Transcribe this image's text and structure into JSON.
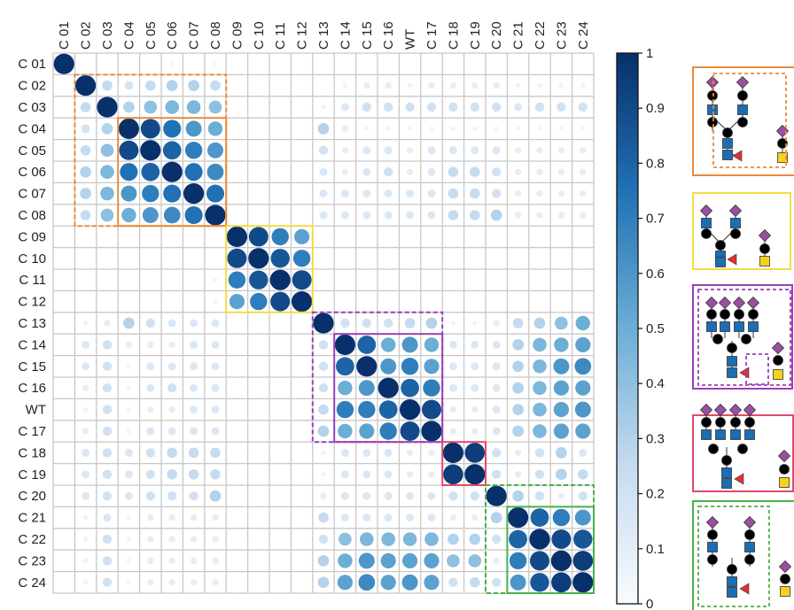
{
  "chart_data": {
    "type": "heatmap",
    "title": "",
    "labels": [
      "C 01",
      "C 02",
      "C 03",
      "C 04",
      "C 05",
      "C 06",
      "C 07",
      "C 08",
      "C 09",
      "C 10",
      "C 11",
      "C 12",
      "C 13",
      "C 14",
      "C 15",
      "C 16",
      "WT",
      "C 17",
      "C 18",
      "C 19",
      "C 20",
      "C 21",
      "C 22",
      "C 23",
      "C 24"
    ],
    "matrix": [
      [
        1,
        0,
        0,
        0,
        0,
        0.02,
        0,
        0.02,
        0,
        0,
        0,
        0,
        0,
        0,
        0,
        0,
        0,
        0,
        0,
        0,
        0,
        0,
        0,
        0,
        0
      ],
      [
        0,
        1,
        0.25,
        0.18,
        0.25,
        0.3,
        0.3,
        0.25,
        0,
        0,
        0,
        0,
        0,
        0.05,
        0.1,
        0.1,
        0.06,
        0.1,
        0.1,
        0.1,
        0.1,
        0.06,
        0.06,
        0.06,
        0.06
      ],
      [
        0,
        0.25,
        1,
        0.3,
        0.4,
        0.45,
        0.45,
        0.4,
        0,
        0,
        0,
        0,
        0.05,
        0.15,
        0.2,
        0.2,
        0.2,
        0.2,
        0.2,
        0.2,
        0.2,
        0.15,
        0.2,
        0.2,
        0.2
      ],
      [
        0,
        0.18,
        0.3,
        1,
        0.9,
        0.75,
        0.6,
        0.5,
        0,
        0,
        0,
        0,
        0.3,
        0.1,
        0.05,
        0.05,
        0.05,
        0.05,
        0.05,
        0.05,
        0.05,
        0.05,
        0.05,
        0.05,
        0.05
      ],
      [
        0,
        0.25,
        0.4,
        0.9,
        1,
        0.8,
        0.7,
        0.6,
        0,
        0,
        0,
        0,
        0.2,
        0.1,
        0.15,
        0.15,
        0.1,
        0.15,
        0.15,
        0.15,
        0.15,
        0.1,
        0.1,
        0.1,
        0.1
      ],
      [
        0,
        0.3,
        0.45,
        0.75,
        0.8,
        1,
        0.75,
        0.65,
        0,
        0,
        0,
        0,
        0.15,
        0.1,
        0.15,
        0.2,
        0.1,
        0.15,
        0.25,
        0.25,
        0.2,
        0.1,
        0.1,
        0.1,
        0.1
      ],
      [
        0,
        0.3,
        0.45,
        0.6,
        0.7,
        0.75,
        1,
        0.75,
        0,
        0,
        0,
        0,
        0.15,
        0.15,
        0.15,
        0.15,
        0.15,
        0.15,
        0.25,
        0.25,
        0.2,
        0.1,
        0.1,
        0.1,
        0.1
      ],
      [
        0,
        0.25,
        0.4,
        0.5,
        0.6,
        0.65,
        0.75,
        1,
        0,
        0,
        0,
        0,
        0.15,
        0.15,
        0.15,
        0.15,
        0.15,
        0.15,
        0.25,
        0.25,
        0.3,
        0.1,
        0.1,
        0.1,
        0.1
      ],
      [
        0,
        0,
        0,
        0,
        0,
        0,
        0,
        0,
        1,
        0.9,
        0.7,
        0.55,
        0,
        0,
        0,
        0,
        0,
        0,
        0,
        0,
        0,
        0,
        0,
        0,
        0
      ],
      [
        0,
        0,
        0,
        0,
        0,
        0,
        0,
        0,
        0.9,
        1,
        0.85,
        0.7,
        0,
        0,
        0,
        0,
        0,
        0,
        0,
        0,
        0,
        0,
        0,
        0,
        0
      ],
      [
        0,
        0,
        0,
        0,
        0,
        0,
        0,
        0.05,
        0.7,
        0.85,
        1,
        0.9,
        0,
        0,
        0,
        0,
        0,
        0,
        0,
        0,
        0,
        0,
        0,
        0,
        0
      ],
      [
        0,
        0,
        0,
        0,
        0,
        0,
        0,
        0.05,
        0.55,
        0.7,
        0.9,
        1,
        0,
        0,
        0,
        0,
        0,
        0,
        0,
        0,
        0,
        0,
        0,
        0,
        0
      ],
      [
        0,
        0.05,
        0.1,
        0.3,
        0.2,
        0.15,
        0.15,
        0.15,
        0,
        0,
        0,
        0,
        1,
        0.2,
        0.2,
        0.2,
        0.25,
        0.3,
        0.05,
        0.05,
        0.1,
        0.25,
        0.3,
        0.4,
        0.5
      ],
      [
        0,
        0.15,
        0.2,
        0.1,
        0.1,
        0.1,
        0.15,
        0.15,
        0,
        0,
        0,
        0,
        0.2,
        1,
        0.8,
        0.5,
        0.6,
        0.5,
        0.15,
        0.15,
        0.15,
        0.3,
        0.45,
        0.5,
        0.55
      ],
      [
        0,
        0.15,
        0.2,
        0.05,
        0.15,
        0.15,
        0.15,
        0.15,
        0,
        0,
        0,
        0,
        0.2,
        0.8,
        1,
        0.6,
        0.7,
        0.55,
        0.15,
        0.15,
        0.15,
        0.3,
        0.45,
        0.6,
        0.65
      ],
      [
        0,
        0.1,
        0.2,
        0.05,
        0.15,
        0.2,
        0.15,
        0.15,
        0,
        0,
        0,
        0,
        0.2,
        0.5,
        0.6,
        1,
        0.8,
        0.7,
        0.15,
        0.15,
        0.15,
        0.3,
        0.45,
        0.55,
        0.55
      ],
      [
        0,
        0.06,
        0.2,
        0.05,
        0.1,
        0.1,
        0.15,
        0.15,
        0,
        0,
        0,
        0,
        0.25,
        0.7,
        0.7,
        0.8,
        1,
        0.9,
        0.1,
        0.1,
        0.15,
        0.3,
        0.45,
        0.55,
        0.6
      ],
      [
        0,
        0.1,
        0.2,
        0.05,
        0.15,
        0.15,
        0.15,
        0.15,
        0,
        0,
        0,
        0,
        0.3,
        0.5,
        0.55,
        0.7,
        0.9,
        1,
        0.1,
        0.1,
        0.15,
        0.3,
        0.45,
        0.55,
        0.55
      ],
      [
        0,
        0.15,
        0.2,
        0.15,
        0.2,
        0.25,
        0.25,
        0.25,
        0,
        0,
        0,
        0,
        0.05,
        0.15,
        0.15,
        0.15,
        0.1,
        0.1,
        1,
        0.95,
        0.2,
        0.1,
        0.2,
        0.3,
        0.15
      ],
      [
        0,
        0.15,
        0.2,
        0.15,
        0.2,
        0.25,
        0.25,
        0.25,
        0,
        0,
        0,
        0,
        0.05,
        0.15,
        0.15,
        0.15,
        0.1,
        0.1,
        0.95,
        1,
        0.2,
        0.1,
        0.2,
        0.3,
        0.25
      ],
      [
        0,
        0.15,
        0.2,
        0.15,
        0.2,
        0.2,
        0.2,
        0.3,
        0,
        0,
        0,
        0,
        0.1,
        0.15,
        0.15,
        0.15,
        0.15,
        0.15,
        0.2,
        0.2,
        1,
        0.3,
        0.2,
        0.1,
        0.2
      ],
      [
        0,
        0.06,
        0.15,
        0.05,
        0.1,
        0.1,
        0.1,
        0.1,
        0,
        0,
        0,
        0,
        0.25,
        0.15,
        0.15,
        0.15,
        0.15,
        0.15,
        0.1,
        0.1,
        0.3,
        1,
        0.8,
        0.7,
        0.6
      ],
      [
        0,
        0.06,
        0.2,
        0.05,
        0.1,
        0.1,
        0.1,
        0.1,
        0,
        0,
        0,
        0,
        0.2,
        0.4,
        0.45,
        0.45,
        0.45,
        0.45,
        0.3,
        0.3,
        0.2,
        0.8,
        1,
        0.9,
        0.85
      ],
      [
        0,
        0.06,
        0.2,
        0.05,
        0.1,
        0.1,
        0.1,
        0.1,
        0,
        0,
        0,
        0,
        0.3,
        0.5,
        0.6,
        0.55,
        0.55,
        0.55,
        0.4,
        0.4,
        0.1,
        0.7,
        0.9,
        1,
        0.95
      ],
      [
        0,
        0.06,
        0.2,
        0.05,
        0.1,
        0.1,
        0.1,
        0.1,
        0,
        0,
        0,
        0,
        0.3,
        0.55,
        0.65,
        0.55,
        0.6,
        0.55,
        0.2,
        0.25,
        0.2,
        0.6,
        0.85,
        0.95,
        1
      ]
    ],
    "colorbar": {
      "min": 0,
      "max": 1,
      "ticks": [
        "0",
        "0.1",
        "0.2",
        "0.3",
        "0.4",
        "0.5",
        "0.6",
        "0.7",
        "0.8",
        "0.9",
        "1"
      ],
      "low_color": "#f7fbff",
      "high_color": "#08306b"
    },
    "grid": true,
    "legend": "colorbar-right",
    "cluster_boxes": [
      {
        "start": 2,
        "end": 8,
        "color": "#ec8a3a",
        "style": "dashed"
      },
      {
        "start": 4,
        "end": 8,
        "color": "#ec8a3a",
        "style": "solid"
      },
      {
        "start": 9,
        "end": 12,
        "color": "#f2dc40",
        "style": "solid"
      },
      {
        "start": 13,
        "end": 18,
        "color": "#9b3fb8",
        "style": "dashed"
      },
      {
        "start": 14,
        "end": 18,
        "color": "#9b3fb8",
        "style": "solid"
      },
      {
        "start": 19,
        "end": 20,
        "color": "#e04a6a",
        "style": "solid"
      },
      {
        "start": 21,
        "end": 25,
        "color": "#4bb04a",
        "style": "dashed"
      },
      {
        "start": 22,
        "end": 25,
        "color": "#4bb04a",
        "style": "solid"
      }
    ]
  },
  "glycan_panels": [
    {
      "border": "#ec8a3a"
    },
    {
      "border": "#f2dc40"
    },
    {
      "border": "#9b3fb8"
    },
    {
      "border": "#e04a6a"
    },
    {
      "border": "#4bb04a"
    }
  ],
  "icons": [
    "mannose-circle-icon",
    "galactose-circle-icon",
    "glcnac-square-icon",
    "sialic-acid-diamond-icon",
    "fucose-triangle-icon",
    "galnac-square-icon"
  ]
}
